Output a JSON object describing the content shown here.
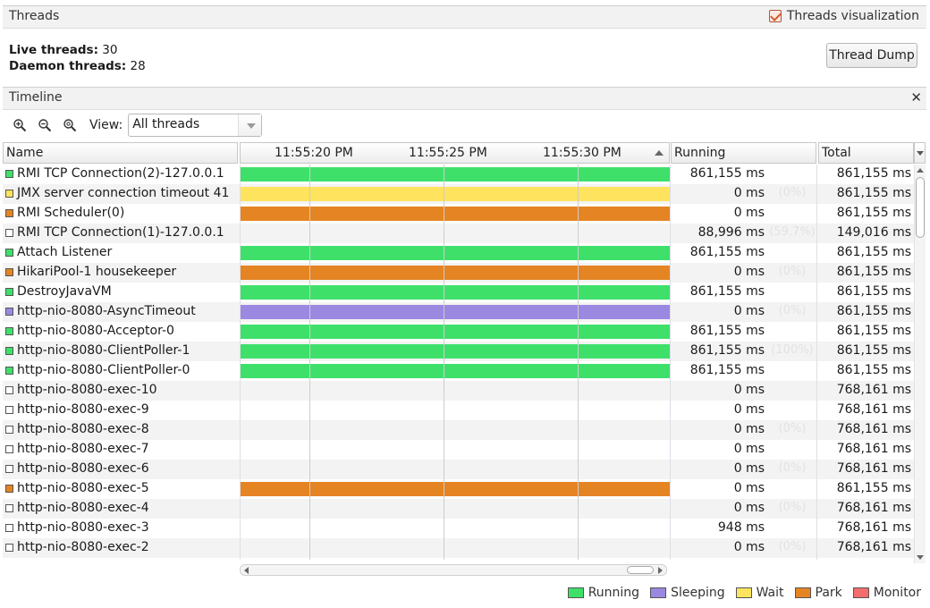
{
  "threads_panel": {
    "title": "Threads",
    "visualization_label": "Threads visualization",
    "visualization_checked": true,
    "live_label": "Live threads:",
    "live_value": "30",
    "daemon_label": "Daemon threads:",
    "daemon_value": "28",
    "thread_dump_label": "Thread Dump"
  },
  "timeline_panel": {
    "title": "Timeline",
    "close_icon": "close-icon",
    "view_label": "View:",
    "view_value": "All threads"
  },
  "table": {
    "columns": {
      "name": "Name",
      "running": "Running",
      "total": "Total"
    },
    "timeline_ticks": [
      "11:55:20 PM",
      "11:55:25 PM",
      "11:55:30 PM"
    ]
  },
  "colors": {
    "running": "#3ee06a",
    "sleeping": "#9b88e0",
    "wait": "#fde35e",
    "park": "#e58423",
    "monitor": "#f36d6d",
    "none": "#ffffff"
  },
  "threads": [
    {
      "name": "RMI TCP Connection(2)-127.0.0.1",
      "state": "running",
      "bar_fraction": 1,
      "running": "861,155 ms",
      "pct": "",
      "total": "861,155 ms"
    },
    {
      "name": "JMX server connection timeout 41",
      "state": "wait",
      "bar_fraction": 1,
      "running": "0 ms",
      "pct": "(0%)",
      "total": "861,155 ms"
    },
    {
      "name": "RMI Scheduler(0)",
      "state": "park",
      "bar_fraction": 1,
      "running": "0 ms",
      "pct": "",
      "total": "861,155 ms"
    },
    {
      "name": "RMI TCP Connection(1)-127.0.0.1",
      "state": "none",
      "bar_fraction": 0,
      "running": "88,996 ms",
      "pct": "(59.7%)",
      "total": "149,016 ms"
    },
    {
      "name": "Attach Listener",
      "state": "running",
      "bar_fraction": 1,
      "running": "861,155 ms",
      "pct": "",
      "total": "861,155 ms"
    },
    {
      "name": "HikariPool-1 housekeeper",
      "state": "park",
      "bar_fraction": 1,
      "running": "0 ms",
      "pct": "(0%)",
      "total": "861,155 ms"
    },
    {
      "name": "DestroyJavaVM",
      "state": "running",
      "bar_fraction": 1,
      "running": "861,155 ms",
      "pct": "",
      "total": "861,155 ms"
    },
    {
      "name": "http-nio-8080-AsyncTimeout",
      "state": "sleeping",
      "bar_fraction": 1,
      "running": "0 ms",
      "pct": "(0%)",
      "total": "861,155 ms"
    },
    {
      "name": "http-nio-8080-Acceptor-0",
      "state": "running",
      "bar_fraction": 1,
      "running": "861,155 ms",
      "pct": "",
      "total": "861,155 ms"
    },
    {
      "name": "http-nio-8080-ClientPoller-1",
      "state": "running",
      "bar_fraction": 1,
      "running": "861,155 ms",
      "pct": "(100%)",
      "total": "861,155 ms"
    },
    {
      "name": "http-nio-8080-ClientPoller-0",
      "state": "running",
      "bar_fraction": 1,
      "running": "861,155 ms",
      "pct": "",
      "total": "861,155 ms"
    },
    {
      "name": "http-nio-8080-exec-10",
      "state": "none",
      "bar_fraction": 0,
      "running": "0 ms",
      "pct": "",
      "total": "768,161 ms"
    },
    {
      "name": "http-nio-8080-exec-9",
      "state": "none",
      "bar_fraction": 0,
      "running": "0 ms",
      "pct": "",
      "total": "768,161 ms"
    },
    {
      "name": "http-nio-8080-exec-8",
      "state": "none",
      "bar_fraction": 0,
      "running": "0 ms",
      "pct": "(0%)",
      "total": "768,161 ms"
    },
    {
      "name": "http-nio-8080-exec-7",
      "state": "none",
      "bar_fraction": 0,
      "running": "0 ms",
      "pct": "",
      "total": "768,161 ms"
    },
    {
      "name": "http-nio-8080-exec-6",
      "state": "none",
      "bar_fraction": 0,
      "running": "0 ms",
      "pct": "(0%)",
      "total": "768,161 ms"
    },
    {
      "name": "http-nio-8080-exec-5",
      "state": "park",
      "bar_fraction": 1,
      "running": "0 ms",
      "pct": "",
      "total": "861,155 ms"
    },
    {
      "name": "http-nio-8080-exec-4",
      "state": "none",
      "bar_fraction": 0,
      "running": "0 ms",
      "pct": "(0%)",
      "total": "768,161 ms"
    },
    {
      "name": "http-nio-8080-exec-3",
      "state": "none",
      "bar_fraction": 0,
      "running": "948 ms",
      "pct": "",
      "total": "768,161 ms"
    },
    {
      "name": "http-nio-8080-exec-2",
      "state": "none",
      "bar_fraction": 0,
      "running": "0 ms",
      "pct": "(0%)",
      "total": "768,161 ms"
    }
  ],
  "legend": [
    {
      "label": "Running",
      "state": "running"
    },
    {
      "label": "Sleeping",
      "state": "sleeping"
    },
    {
      "label": "Wait",
      "state": "wait"
    },
    {
      "label": "Park",
      "state": "park"
    },
    {
      "label": "Monitor",
      "state": "monitor"
    }
  ]
}
